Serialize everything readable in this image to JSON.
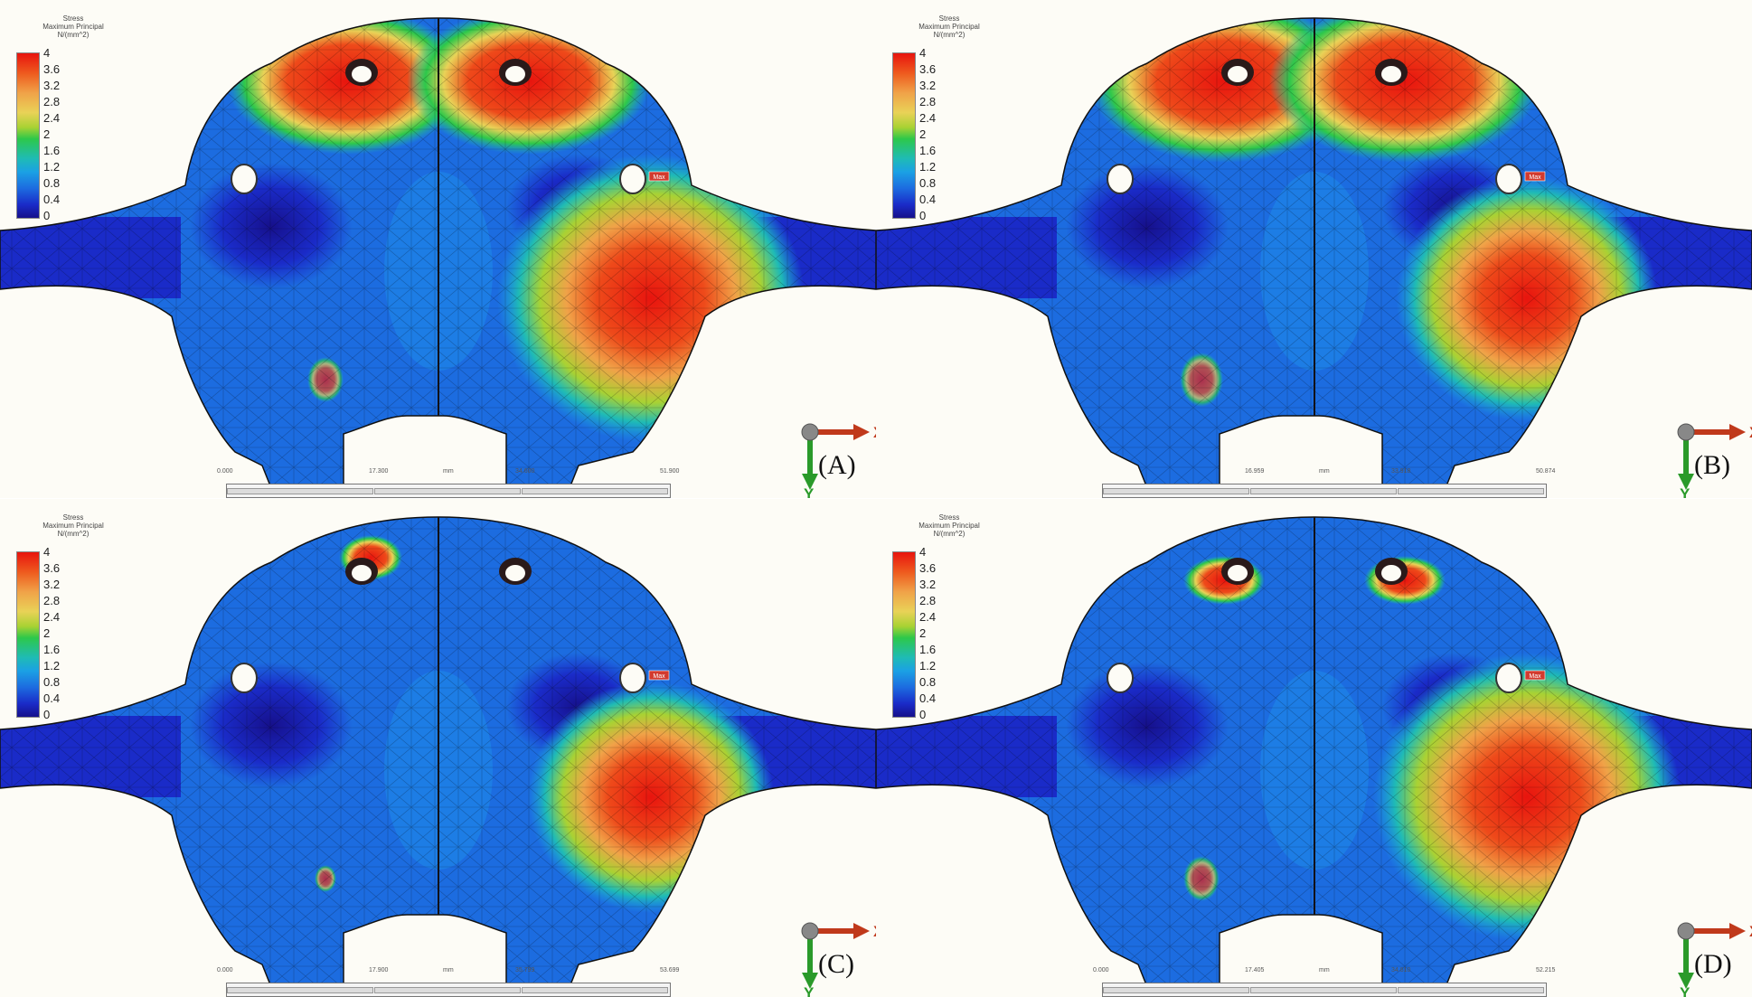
{
  "legend": {
    "title_lines": [
      "Stress",
      "Maximum Principal",
      "N/(mm^2)"
    ],
    "ticks": [
      "4",
      "3.6",
      "3.2",
      "2.8",
      "2.4",
      "2",
      "1.6",
      "1.2",
      "0.8",
      "0.4",
      "0"
    ]
  },
  "axes": {
    "x": "X",
    "y": "Y"
  },
  "max_marker": "Max",
  "scale_unit": "mm",
  "colors": {
    "low": "#16108c",
    "mid": "#1ba1e4",
    "green": "#2dc84a",
    "yellow": "#e9d257",
    "high": "#e8140e",
    "x_axis": "#c0391b",
    "y_axis": "#2a9a2a"
  },
  "panels": [
    {
      "id": "A",
      "label": "(A)",
      "scale": [
        "0.000",
        "17.300",
        "mm",
        "34.600",
        "51.900"
      ]
    },
    {
      "id": "B",
      "label": "(B)",
      "scale": [
        "",
        "16.959",
        "mm",
        "33.918",
        "50.874"
      ]
    },
    {
      "id": "C",
      "label": "(C)",
      "scale": [
        "0.000",
        "17.900",
        "mm",
        "35.799",
        "53.699"
      ]
    },
    {
      "id": "D",
      "label": "(D)",
      "scale": [
        "0.000",
        "17.405",
        "mm",
        "34.810",
        "52.215"
      ]
    }
  ]
}
